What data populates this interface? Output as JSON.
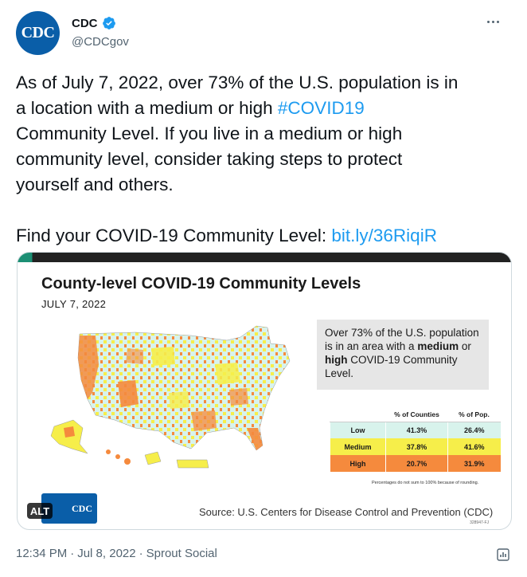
{
  "author": {
    "avatar_text": "CDC",
    "name": "CDC",
    "handle": "@CDCgov"
  },
  "tweet": {
    "line1": "As of July 7, 2022, over 73% of the U.S. population is in",
    "line2_prefix": "a location with a medium or high ",
    "hashtag": "#COVID19",
    "line3": "Community Level. If you live in a medium or high",
    "line4": "community level, consider taking steps to protect",
    "line5": "yourself and others.",
    "line6_prefix": "Find your COVID-19 Community Level: ",
    "link": "bit.ly/36RiqiR"
  },
  "graphic": {
    "title": "County-level COVID-19 Community Levels",
    "date": "JULY 7, 2022",
    "callout_pre": "Over 73% of the U.S. population is in an area with a ",
    "callout_medium": "medium",
    "callout_mid": " or ",
    "callout_high": "high",
    "callout_post": " COVID-19 Community Level.",
    "table": {
      "headers": [
        "",
        "% of Counties",
        "% of Pop."
      ],
      "rows": [
        {
          "level": "Low",
          "counties": "41.3%",
          "pop": "26.4%"
        },
        {
          "level": "Medium",
          "counties": "37.8%",
          "pop": "41.6%"
        },
        {
          "level": "High",
          "counties": "20.7%",
          "pop": "31.9%"
        }
      ]
    },
    "footnote": "Percentages do not sum to 100% because of rounding.",
    "logo_text": "CDC",
    "alt_badge": "ALT",
    "source": "Source: U.S. Centers for Disease Control and Prevention (CDC)",
    "doc_code": "328947-FJ"
  },
  "colors": {
    "low": "#d8f3ec",
    "medium": "#f6ee4a",
    "high": "#f58a3d",
    "link": "#1d9bf0",
    "brand": "#0a5ea8"
  },
  "meta": {
    "time": "12:34 PM",
    "sep1": "·",
    "date": "Jul 8, 2022",
    "sep2": "·",
    "source": "Sprout Social"
  },
  "icons": {
    "verified": "verified-badge-icon",
    "more": "more-options-icon",
    "analytics": "view-analytics-icon",
    "map": "us-county-map-icon"
  }
}
